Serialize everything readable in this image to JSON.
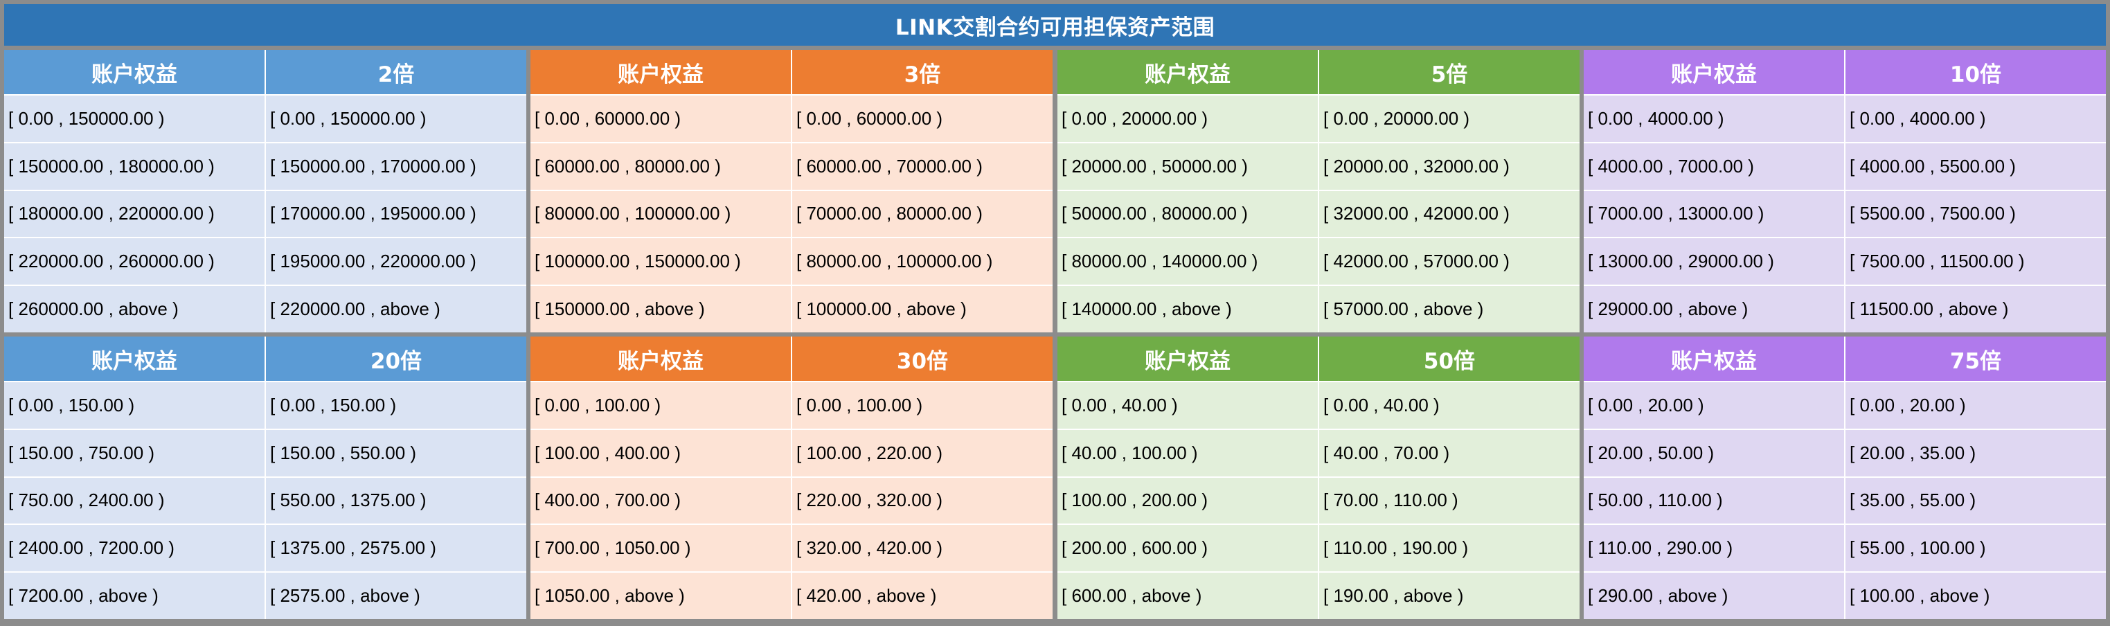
{
  "title": "LINK交割合约可用担保资产范围",
  "colors": {
    "title_bg": "#2f75b5",
    "border": "#8c8c8c",
    "blue_header": "#5b9bd5",
    "blue_cell": "#dae3f3",
    "orange_header": "#ed7d31",
    "orange_cell": "#fde3d5",
    "green_header": "#70ad47",
    "green_cell": "#e2efda",
    "purple_header": "#b07aec",
    "purple_cell": "#dfd7f2"
  },
  "blocks": [
    {
      "theme": "blue",
      "equity_header": "账户权益",
      "leverage_header": "2倍",
      "rows": [
        [
          "[ 0.00 , 150000.00 )",
          "[ 0.00 , 150000.00 )"
        ],
        [
          "[ 150000.00 , 180000.00 )",
          "[ 150000.00 , 170000.00 )"
        ],
        [
          "[ 180000.00 , 220000.00 )",
          "[ 170000.00 , 195000.00 )"
        ],
        [
          "[ 220000.00 , 260000.00 )",
          "[ 195000.00 , 220000.00 )"
        ],
        [
          "[ 260000.00 , above )",
          "[ 220000.00 , above )"
        ]
      ]
    },
    {
      "theme": "orange",
      "equity_header": "账户权益",
      "leverage_header": "3倍",
      "rows": [
        [
          "[ 0.00 , 60000.00 )",
          "[ 0.00 , 60000.00 )"
        ],
        [
          "[ 60000.00 , 80000.00 )",
          "[ 60000.00 , 70000.00 )"
        ],
        [
          "[ 80000.00 , 100000.00 )",
          "[ 70000.00 , 80000.00 )"
        ],
        [
          "[ 100000.00 , 150000.00 )",
          "[ 80000.00 , 100000.00 )"
        ],
        [
          "[ 150000.00 , above )",
          "[ 100000.00 , above )"
        ]
      ]
    },
    {
      "theme": "green",
      "equity_header": "账户权益",
      "leverage_header": "5倍",
      "rows": [
        [
          "[ 0.00 , 20000.00 )",
          "[ 0.00 , 20000.00 )"
        ],
        [
          "[ 20000.00 , 50000.00 )",
          "[ 20000.00 , 32000.00 )"
        ],
        [
          "[ 50000.00 , 80000.00 )",
          "[ 32000.00 , 42000.00 )"
        ],
        [
          "[ 80000.00 , 140000.00 )",
          "[ 42000.00 , 57000.00 )"
        ],
        [
          "[ 140000.00 , above )",
          "[ 57000.00 , above )"
        ]
      ]
    },
    {
      "theme": "purple",
      "equity_header": "账户权益",
      "leverage_header": "10倍",
      "rows": [
        [
          "[ 0.00 , 4000.00 )",
          "[ 0.00 , 4000.00 )"
        ],
        [
          "[ 4000.00 , 7000.00 )",
          "[ 4000.00 , 5500.00 )"
        ],
        [
          "[ 7000.00 , 13000.00 )",
          "[ 5500.00 , 7500.00 )"
        ],
        [
          "[ 13000.00 , 29000.00 )",
          "[ 7500.00 , 11500.00 )"
        ],
        [
          "[ 29000.00 , above )",
          "[ 11500.00 , above )"
        ]
      ]
    },
    {
      "theme": "blue",
      "equity_header": "账户权益",
      "leverage_header": "20倍",
      "rows": [
        [
          "[ 0.00 , 150.00 )",
          "[ 0.00 , 150.00 )"
        ],
        [
          "[ 150.00 , 750.00 )",
          "[ 150.00 , 550.00 )"
        ],
        [
          "[ 750.00 , 2400.00 )",
          "[ 550.00 , 1375.00 )"
        ],
        [
          "[ 2400.00 , 7200.00 )",
          "[ 1375.00 , 2575.00 )"
        ],
        [
          "[ 7200.00 , above )",
          "[ 2575.00 , above )"
        ]
      ]
    },
    {
      "theme": "orange",
      "equity_header": "账户权益",
      "leverage_header": "30倍",
      "rows": [
        [
          "[ 0.00 , 100.00 )",
          "[ 0.00 , 100.00 )"
        ],
        [
          "[ 100.00 , 400.00 )",
          "[ 100.00 , 220.00 )"
        ],
        [
          "[ 400.00 , 700.00 )",
          "[ 220.00 , 320.00 )"
        ],
        [
          "[ 700.00 , 1050.00 )",
          "[ 320.00 , 420.00 )"
        ],
        [
          "[ 1050.00 , above )",
          "[ 420.00 , above )"
        ]
      ]
    },
    {
      "theme": "green",
      "equity_header": "账户权益",
      "leverage_header": "50倍",
      "rows": [
        [
          "[ 0.00 , 40.00 )",
          "[ 0.00 , 40.00 )"
        ],
        [
          "[ 40.00 , 100.00 )",
          "[ 40.00 , 70.00 )"
        ],
        [
          "[ 100.00 , 200.00 )",
          "[ 70.00 , 110.00 )"
        ],
        [
          "[ 200.00 , 600.00 )",
          "[ 110.00 , 190.00 )"
        ],
        [
          "[ 600.00 , above )",
          "[ 190.00 , above )"
        ]
      ]
    },
    {
      "theme": "purple",
      "equity_header": "账户权益",
      "leverage_header": "75倍",
      "rows": [
        [
          "[ 0.00 , 20.00 )",
          "[ 0.00 , 20.00 )"
        ],
        [
          "[ 20.00 , 50.00 )",
          "[ 20.00 , 35.00 )"
        ],
        [
          "[ 50.00 , 110.00 )",
          "[ 35.00 , 55.00 )"
        ],
        [
          "[ 110.00 , 290.00 )",
          "[ 55.00 , 100.00 )"
        ],
        [
          "[ 290.00 , above )",
          "[ 100.00 , above )"
        ]
      ]
    }
  ]
}
